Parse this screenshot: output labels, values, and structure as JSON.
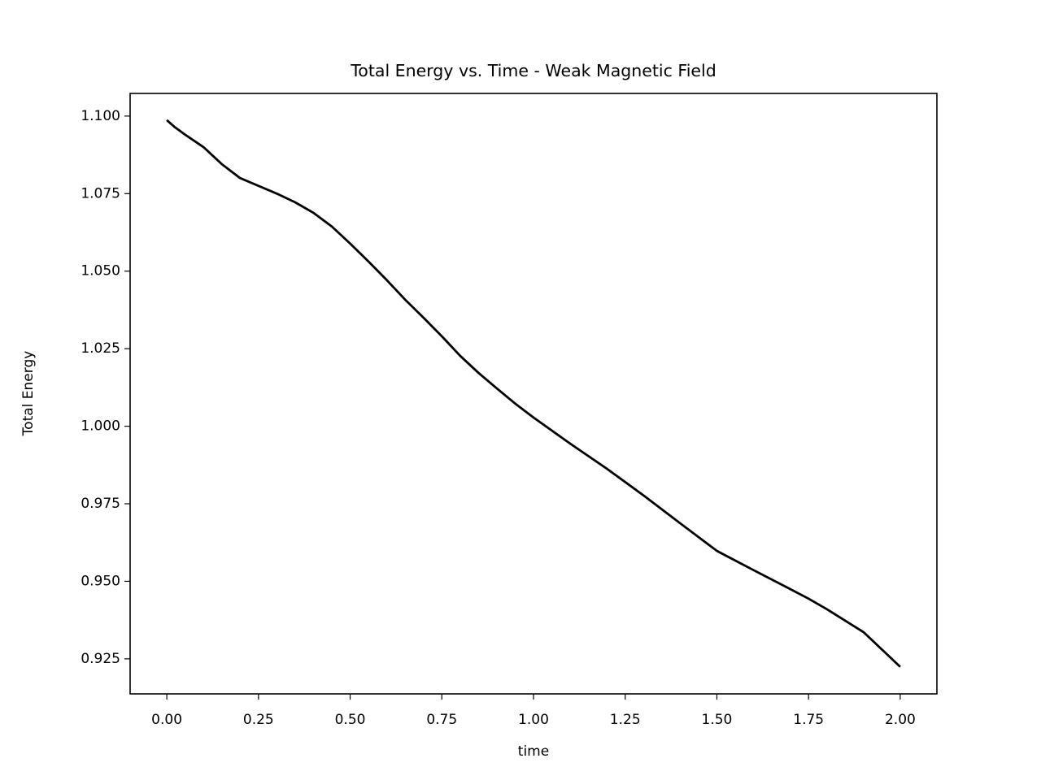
{
  "chart_data": {
    "type": "line",
    "title": "Total Energy vs. Time - Weak Magnetic Field",
    "xlabel": "time",
    "ylabel": "Total Energy",
    "x": [
      0,
      0.02,
      0.05,
      0.1,
      0.15,
      0.2,
      0.25,
      0.3,
      0.35,
      0.4,
      0.45,
      0.5,
      0.55,
      0.6,
      0.65,
      0.7,
      0.75,
      0.8,
      0.85,
      0.9,
      0.95,
      1.0,
      1.1,
      1.2,
      1.3,
      1.4,
      1.5,
      1.6,
      1.7,
      1.75,
      1.8,
      1.9,
      2.0
    ],
    "series": [
      {
        "name": "Total Energy",
        "color": "#000000",
        "values": [
          1.0987,
          1.0966,
          1.094,
          1.09,
          1.0845,
          1.08,
          1.0775,
          1.075,
          1.0722,
          1.0688,
          1.0644,
          1.0589,
          1.0531,
          1.0471,
          1.0408,
          1.035,
          1.029,
          1.0227,
          1.0172,
          1.0122,
          1.0073,
          1.0028,
          0.9944,
          0.9863,
          0.9777,
          0.9687,
          0.9598,
          0.9536,
          0.9475,
          0.9444,
          0.941,
          0.9336,
          0.9224
        ]
      }
    ],
    "xlim": [
      -0.1,
      2.1
    ],
    "xticks": [
      {
        "value": 0,
        "label": "0.00"
      },
      0.25,
      {
        "value": 0.5,
        "label": "0.50"
      },
      0.75,
      {
        "value": 1,
        "label": "1.00"
      },
      1.25,
      {
        "value": 1.5,
        "label": "1.50"
      },
      1.75,
      {
        "value": 2,
        "label": "2.00"
      }
    ],
    "ylim": [
      0.9137,
      1.1073
    ],
    "yticks": [
      {
        "value": 0.925,
        "label": "0.925"
      },
      {
        "value": 0.95,
        "label": "0.950"
      },
      {
        "value": 0.975,
        "label": "0.975"
      },
      {
        "value": 1,
        "label": "1.000"
      },
      {
        "value": 1.025,
        "label": "1.025"
      },
      {
        "value": 1.05,
        "label": "1.050"
      },
      {
        "value": 1.075,
        "label": "1.075"
      },
      {
        "value": 1.1,
        "label": "1.100"
      }
    ],
    "grid": false
  }
}
